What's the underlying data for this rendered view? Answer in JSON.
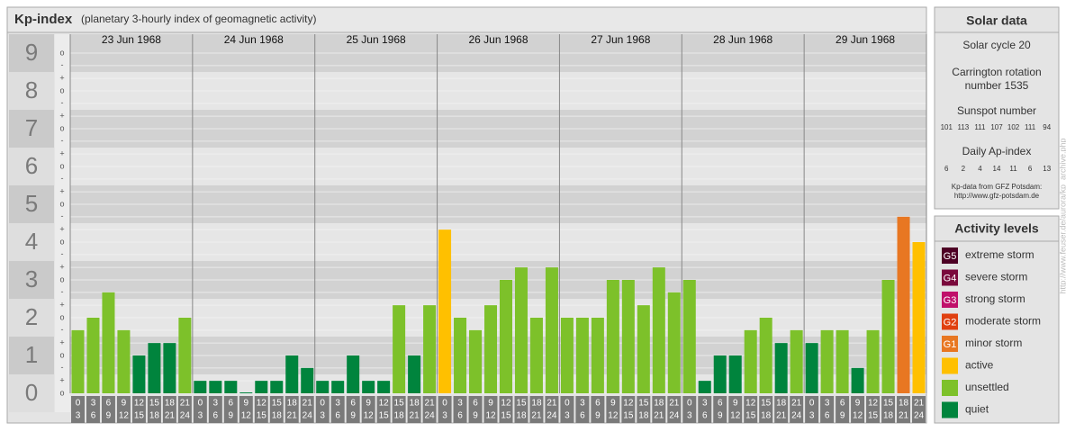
{
  "title": "Kp-index",
  "subtitle": "(planetary 3-hourly index of geomagnetic activity)",
  "chart_data": {
    "type": "bar",
    "days": [
      "23 Jun 1968",
      "24 Jun 1968",
      "25 Jun 1968",
      "26 Jun 1968",
      "27 Jun 1968",
      "28 Jun 1968",
      "29 Jun 1968"
    ],
    "slot_labels": [
      {
        "start": "0",
        "end": "3"
      },
      {
        "start": "3",
        "end": "6"
      },
      {
        "start": "6",
        "end": "9"
      },
      {
        "start": "9",
        "end": "12"
      },
      {
        "start": "12",
        "end": "15"
      },
      {
        "start": "15",
        "end": "18"
      },
      {
        "start": "18",
        "end": "21"
      },
      {
        "start": "21",
        "end": "24"
      }
    ],
    "values": [
      1.67,
      2,
      2.67,
      1.67,
      1,
      1.33,
      1.33,
      2,
      0.33,
      0.33,
      0.33,
      0,
      0.33,
      0.33,
      1,
      0.67,
      0.33,
      0.33,
      1,
      0.33,
      0.33,
      2.33,
      1,
      2.33,
      4.33,
      2,
      1.67,
      2.33,
      3,
      3.33,
      2,
      3.33,
      2,
      2,
      2,
      3,
      3,
      2.33,
      3.33,
      2.67,
      3,
      0.33,
      1,
      1,
      1.67,
      2,
      1.33,
      1.67,
      1.33,
      1.67,
      1.67,
      0.67,
      1.67,
      3,
      4.67,
      4
    ],
    "colors": [
      "#7dc12a",
      "#7dc12a",
      "#7dc12a",
      "#7dc12a",
      "#00843d",
      "#00843d",
      "#00843d",
      "#7dc12a",
      "#00843d",
      "#00843d",
      "#00843d",
      "#00843d",
      "#00843d",
      "#00843d",
      "#00843d",
      "#00843d",
      "#00843d",
      "#00843d",
      "#00843d",
      "#00843d",
      "#00843d",
      "#7dc12a",
      "#00843d",
      "#7dc12a",
      "#ffc000",
      "#7dc12a",
      "#7dc12a",
      "#7dc12a",
      "#7dc12a",
      "#7dc12a",
      "#7dc12a",
      "#7dc12a",
      "#7dc12a",
      "#7dc12a",
      "#7dc12a",
      "#7dc12a",
      "#7dc12a",
      "#7dc12a",
      "#7dc12a",
      "#7dc12a",
      "#7dc12a",
      "#00843d",
      "#00843d",
      "#00843d",
      "#7dc12a",
      "#7dc12a",
      "#00843d",
      "#7dc12a",
      "#00843d",
      "#7dc12a",
      "#7dc12a",
      "#00843d",
      "#7dc12a",
      "#7dc12a",
      "#e87722",
      "#ffc000"
    ],
    "ylim": [
      0,
      9.5
    ],
    "yticks": [
      0,
      1,
      2,
      3,
      4,
      5,
      6,
      7,
      8,
      9
    ],
    "yminorticks": [
      {
        "value": 0,
        "label": "o"
      },
      {
        "value": 0.33,
        "label": "+"
      },
      {
        "value": 0.67,
        "label": "-"
      },
      {
        "value": 1,
        "label": "o"
      },
      {
        "value": 1.33,
        "label": "+"
      },
      {
        "value": 1.67,
        "label": "-"
      },
      {
        "value": 2,
        "label": "o"
      },
      {
        "value": 2.33,
        "label": "+"
      },
      {
        "value": 2.67,
        "label": "-"
      },
      {
        "value": 3,
        "label": "o"
      },
      {
        "value": 3.33,
        "label": "+"
      },
      {
        "value": 3.67,
        "label": "-"
      },
      {
        "value": 4,
        "label": "o"
      },
      {
        "value": 4.33,
        "label": "+"
      },
      {
        "value": 4.67,
        "label": "-"
      },
      {
        "value": 5,
        "label": "o"
      },
      {
        "value": 5.33,
        "label": "+"
      },
      {
        "value": 5.67,
        "label": "-"
      },
      {
        "value": 6,
        "label": "o"
      },
      {
        "value": 6.33,
        "label": "+"
      },
      {
        "value": 6.67,
        "label": "-"
      },
      {
        "value": 7,
        "label": "o"
      },
      {
        "value": 7.33,
        "label": "+"
      },
      {
        "value": 7.67,
        "label": "-"
      },
      {
        "value": 8,
        "label": "o"
      },
      {
        "value": 8.33,
        "label": "+"
      },
      {
        "value": 8.67,
        "label": "-"
      },
      {
        "value": 9,
        "label": "o"
      }
    ],
    "grid": true
  },
  "solar": {
    "title": "Solar data",
    "cycle": "Solar cycle 20",
    "carrington": [
      "Carrington rotation",
      "number 1535"
    ],
    "sunspot_title": "Sunspot number",
    "sunspot": [
      101,
      113,
      111,
      107,
      102,
      111,
      94
    ],
    "ap_title": "Daily Ap-index",
    "ap": [
      6,
      2,
      4,
      14,
      11,
      6,
      13
    ],
    "source": [
      "Kp-data from GFZ Potsdam:",
      "http://www.gfz-potsdam.de"
    ]
  },
  "activity_levels": {
    "title": "Activity levels",
    "items": [
      {
        "badge": "G5",
        "label": "extreme storm",
        "color": "#4d0024"
      },
      {
        "badge": "G4",
        "label": "severe storm",
        "color": "#7a0a3c"
      },
      {
        "badge": "G3",
        "label": "strong storm",
        "color": "#c0106a"
      },
      {
        "badge": "G2",
        "label": "moderate storm",
        "color": "#e04010"
      },
      {
        "badge": "G1",
        "label": "minor storm",
        "color": "#e87722"
      },
      {
        "label": "active",
        "color": "#ffc000"
      },
      {
        "label": "unsettled",
        "color": "#7dc12a"
      },
      {
        "label": "quiet",
        "color": "#00843d"
      }
    ]
  },
  "credit": "http://www.feuser.de/aurora/kp_archive.php"
}
